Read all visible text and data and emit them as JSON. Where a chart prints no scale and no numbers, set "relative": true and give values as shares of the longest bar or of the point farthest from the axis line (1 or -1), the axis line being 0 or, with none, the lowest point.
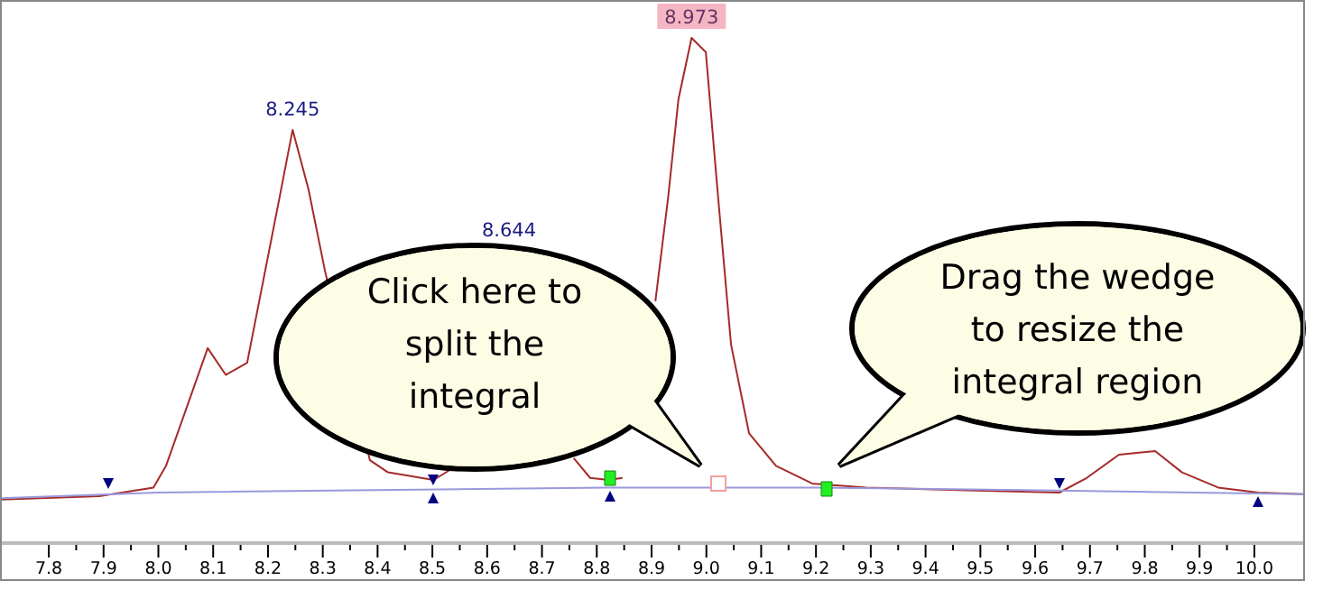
{
  "chart_data": {
    "type": "line",
    "relative": true,
    "xlim": [
      7.711,
      10.089
    ],
    "xticks": [
      {
        "value": 7.8,
        "label": "7.8"
      },
      {
        "value": 7.9,
        "label": "7.9"
      },
      {
        "value": 8,
        "label": "8.0"
      },
      {
        "value": 8.1,
        "label": "8.1"
      },
      {
        "value": 8.2,
        "label": "8.2"
      },
      {
        "value": 8.3,
        "label": "8.3"
      },
      {
        "value": 8.4,
        "label": "8.4"
      },
      {
        "value": 8.5,
        "label": "8.5"
      },
      {
        "value": 8.6,
        "label": "8.6"
      },
      {
        "value": 8.7,
        "label": "8.7"
      },
      {
        "value": 8.8,
        "label": "8.8"
      },
      {
        "value": 8.9,
        "label": "8.9"
      },
      {
        "value": 9,
        "label": "9.0"
      },
      {
        "value": 9.1,
        "label": "9.1"
      },
      {
        "value": 9.2,
        "label": "9.2"
      },
      {
        "value": 9.3,
        "label": "9.3"
      },
      {
        "value": 9.4,
        "label": "9.4"
      },
      {
        "value": 9.5,
        "label": "9.5"
      },
      {
        "value": 9.6,
        "label": "9.6"
      },
      {
        "value": 9.7,
        "label": "9.7"
      },
      {
        "value": 9.8,
        "label": "9.8"
      },
      {
        "value": 9.9,
        "label": "9.9"
      },
      {
        "value": 10,
        "label": "10.0"
      }
    ],
    "series": [
      {
        "color": "#a52a2a",
        "x": [
          7.711,
          7.892,
          7.991,
          8.014,
          8.09,
          8.123,
          8.162,
          8.222,
          8.245,
          8.274,
          8.304,
          8.386,
          8.419,
          8.502,
          8.534,
          8.644,
          8.758,
          8.788,
          8.821,
          8.847,
          8.87,
          8.907,
          8.93,
          8.949,
          8.973,
          8.999,
          9.019,
          9.045,
          9.078,
          9.127,
          9.193,
          9.292,
          9.49,
          9.644,
          9.694,
          9.753,
          9.819,
          9.868,
          9.934,
          10.007,
          10.089
        ],
        "values": [
          0.086,
          0.093,
          0.11,
          0.153,
          0.386,
          0.333,
          0.357,
          0.689,
          0.818,
          0.7,
          0.539,
          0.164,
          0.14,
          0.125,
          0.146,
          null,
          0.168,
          0.129,
          0.125,
          0.129,
          null,
          0.479,
          0.682,
          0.878,
          1,
          0.972,
          0.715,
          0.393,
          0.217,
          0.153,
          0.118,
          0.11,
          0.104,
          0.1,
          0.129,
          0.175,
          0.182,
          0.14,
          0.11,
          0.1,
          0.097
        ]
      },
      {
        "color": "#9999dd",
        "x": [
          7.711,
          8.0,
          8.82,
          9.2,
          9.64,
          10.089
        ],
        "values": [
          0.089,
          0.1,
          0.11,
          0.11,
          0.104,
          0.097
        ]
      }
    ],
    "annotations": [
      {
        "text": "8.245",
        "x": 8.245,
        "y": 0.818
      },
      "8.644",
      {
        "text": "8.973",
        "x": 8.973,
        "y": 1
      },
      "Click here to\nsplit the\nintegral",
      "Drag the wedge\nto resize the\nintegral region"
    ]
  }
}
